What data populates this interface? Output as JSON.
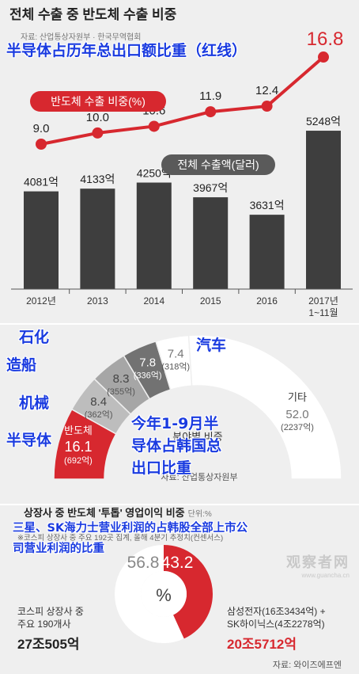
{
  "chart_data": [
    {
      "type": "bar",
      "title": "전체 수출 중 반도체 수출 비중",
      "subtitle": "자료: 산업통상자원부 · 한국무역협회",
      "categories": [
        "2012년",
        "2013",
        "2014",
        "2015",
        "2016",
        "2017년\n1~11월"
      ],
      "series": [
        {
          "name": "전체 수출액(달러)",
          "type": "bar",
          "values": [
            4081,
            4133,
            4250,
            3967,
            3631,
            5248
          ],
          "labels": [
            "4081억",
            "4133억",
            "4250억",
            "3967억",
            "3631억",
            "5248억"
          ]
        },
        {
          "name": "반도체 수출 비중(%)",
          "type": "line",
          "values": [
            9.0,
            10.0,
            10.6,
            11.9,
            12.4,
            16.8
          ],
          "labels": [
            "9.0",
            "10.0",
            "10.6",
            "11.9",
            "12.4",
            "16.8"
          ]
        }
      ],
      "legend_line": "반도체 수출 비중(%)",
      "legend_bar": "전체 수출액(달러)",
      "colors": {
        "bar": "#3e3e3e",
        "line": "#d7282f",
        "background": "#efefef"
      }
    },
    {
      "type": "pie",
      "title": "분야별 비중",
      "source": "자료: 산업통상자원부",
      "slices": [
        {
          "name": "반도체",
          "value": 16.1,
          "amount": "(692억)",
          "color": "#d7282f"
        },
        {
          "name": "",
          "value": 8.4,
          "amount": "(362억)",
          "color": "#bdbdbd"
        },
        {
          "name": "",
          "value": 8.3,
          "amount": "(355억)",
          "color": "#a6a6a6"
        },
        {
          "name": "",
          "value": 7.8,
          "amount": "(336억)",
          "color": "#727272"
        },
        {
          "name": "",
          "value": 7.4,
          "amount": "(318억)",
          "color": "#ffffff"
        },
        {
          "name": "기타",
          "value": 52.0,
          "amount": "(2237억)",
          "color": "#ffffff"
        }
      ]
    },
    {
      "type": "pie",
      "title": "상장사 중 반도체 '투톱' 영업이익 비중",
      "title_suffix": "단위:%",
      "subtitle": "※코스피 상장사 중 주요 192곳 집계, 올해 4분기 추정치(컨센서스)",
      "center_label": "%",
      "slices": [
        {
          "name": "삼성전자+SK하이닉스",
          "value": 43.2,
          "color": "#d7282f"
        },
        {
          "name": "코스피 상장사 중 주요 190개사",
          "value": 56.8,
          "color": "#ffffff"
        }
      ],
      "left_caption": "코스피 상장사 중\n주요 190개사",
      "left_amount": "27조505억",
      "right_caption": "삼성전자(16조3434억) +\nSK하이닉스(4조2278억)",
      "right_amount": "20조5712억",
      "source": "자료: 와이즈에프엔"
    }
  ],
  "annotations": {
    "top": "半导体占历年总出口额比重（红线）",
    "shihua": "石化",
    "zaochuan": "造船",
    "jixie": "机械",
    "bandaoti": "半导体",
    "qiche": "汽车",
    "middle": [
      "今年1-9月半",
      "导体占韩国总",
      "出口比重"
    ],
    "bottom": [
      "三星、SK海力士营业利润的占韩股全部上市公",
      "司营业利润的比重"
    ]
  },
  "watermark": {
    "main": "观察者网",
    "sub": "www.guancha.cn"
  }
}
